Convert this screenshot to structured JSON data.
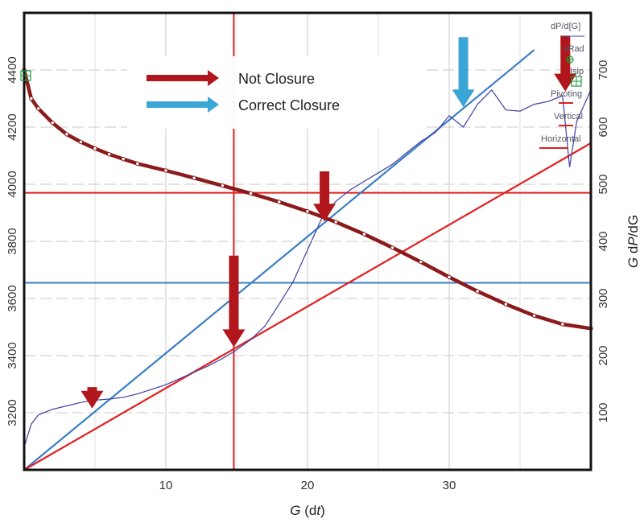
{
  "chart_data": {
    "type": "line",
    "x_axis": {
      "label_prefix": "G",
      "label_open": " (d",
      "label_var": "t",
      "label_close": ")",
      "range": [
        0,
        40
      ],
      "ticks": [
        10,
        20,
        30
      ]
    },
    "y_left": {
      "range": [
        3000,
        4600
      ],
      "ticks": [
        3200,
        3400,
        3600,
        3800,
        4000,
        4200,
        4400
      ]
    },
    "y_right": {
      "label_prefix": "G",
      "label_mid": " d",
      "label_var": "P",
      "label_suffix": "/dG",
      "range": [
        0,
        800
      ],
      "ticks": [
        100,
        200,
        300,
        400,
        500,
        600,
        700
      ]
    },
    "grid": true,
    "legend": {
      "placement": "top-left",
      "items": [
        {
          "label": "Not Closure",
          "color": "#b0161b"
        },
        {
          "label": "Correct Closure",
          "color": "#3aa6d6"
        }
      ]
    },
    "panel_labels": [
      "dP/d[G]",
      "sRad",
      "Isip",
      "Pivoting",
      "Vertical",
      "Horizontal"
    ],
    "series": [
      {
        "axis": "left",
        "color": "#8b1a1a",
        "points": [
          [
            0,
            4400
          ],
          [
            0.5,
            4300
          ],
          [
            1,
            4265
          ],
          [
            2,
            4215
          ],
          [
            3,
            4175
          ],
          [
            4,
            4148
          ],
          [
            5,
            4125
          ],
          [
            6,
            4105
          ],
          [
            7,
            4088
          ],
          [
            8,
            4072
          ],
          [
            10,
            4048
          ],
          [
            12,
            4022
          ],
          [
            14,
            3995
          ],
          [
            16,
            3968
          ],
          [
            18,
            3938
          ],
          [
            20,
            3905
          ],
          [
            22,
            3868
          ],
          [
            24,
            3825
          ],
          [
            26,
            3778
          ],
          [
            28,
            3728
          ],
          [
            30,
            3675
          ],
          [
            32,
            3625
          ],
          [
            34,
            3580
          ],
          [
            36,
            3540
          ],
          [
            38,
            3510
          ],
          [
            40,
            3495
          ]
        ]
      },
      {
        "axis": "right",
        "color": "#3f3fa0",
        "points": [
          [
            0,
            40
          ],
          [
            0.5,
            80
          ],
          [
            1,
            96
          ],
          [
            2,
            106
          ],
          [
            3,
            112
          ],
          [
            4,
            118
          ],
          [
            5,
            122
          ],
          [
            6,
            124
          ],
          [
            7,
            127
          ],
          [
            8,
            133
          ],
          [
            9,
            141
          ],
          [
            10,
            149
          ],
          [
            11,
            160
          ],
          [
            12,
            171
          ],
          [
            13,
            182
          ],
          [
            14,
            195
          ],
          [
            15,
            210
          ],
          [
            16,
            228
          ],
          [
            17,
            252
          ],
          [
            18,
            290
          ],
          [
            19,
            330
          ],
          [
            20,
            385
          ],
          [
            21,
            440
          ],
          [
            22,
            470
          ],
          [
            23,
            490
          ],
          [
            24,
            505
          ],
          [
            25,
            520
          ],
          [
            26,
            535
          ],
          [
            27,
            555
          ],
          [
            28,
            575
          ],
          [
            29,
            590
          ],
          [
            30,
            620
          ],
          [
            31,
            600
          ],
          [
            32,
            640
          ],
          [
            33,
            665
          ],
          [
            34,
            630
          ],
          [
            35,
            628
          ],
          [
            36,
            640
          ],
          [
            37,
            645
          ],
          [
            38,
            655
          ],
          [
            38.5,
            530
          ],
          [
            39,
            610
          ],
          [
            40,
            665
          ]
        ]
      }
    ],
    "straight_lines": [
      {
        "axis": "right",
        "color": "#3a7fc4",
        "from": [
          0,
          0
        ],
        "to": [
          36,
          735
        ]
      },
      {
        "axis": "right",
        "color": "#e02020",
        "from": [
          0,
          0
        ],
        "to": [
          40,
          572
        ]
      }
    ],
    "reference_lines": {
      "vertical_x": 14.8,
      "horizontal_left": [
        {
          "y": 3970,
          "color": "#e02020"
        },
        {
          "y": 3655,
          "color": "#3a7fc4"
        }
      ]
    },
    "arrows": [
      {
        "x": 4.8,
        "y_top": 3290,
        "y_tip": 3215,
        "color": "#b0161b"
      },
      {
        "x": 14.8,
        "y_top": 3750,
        "y_tip": 3430,
        "color": "#b0161b"
      },
      {
        "x": 21.2,
        "y_top": 4045,
        "y_tip": 3870,
        "color": "#b0161b"
      },
      {
        "x": 31.0,
        "y_top": 4515,
        "y_tip": 4270,
        "color": "#3aa6d6"
      },
      {
        "x": 38.2,
        "y_top": 4520,
        "y_tip": 4325,
        "color": "#b0161b"
      }
    ]
  }
}
